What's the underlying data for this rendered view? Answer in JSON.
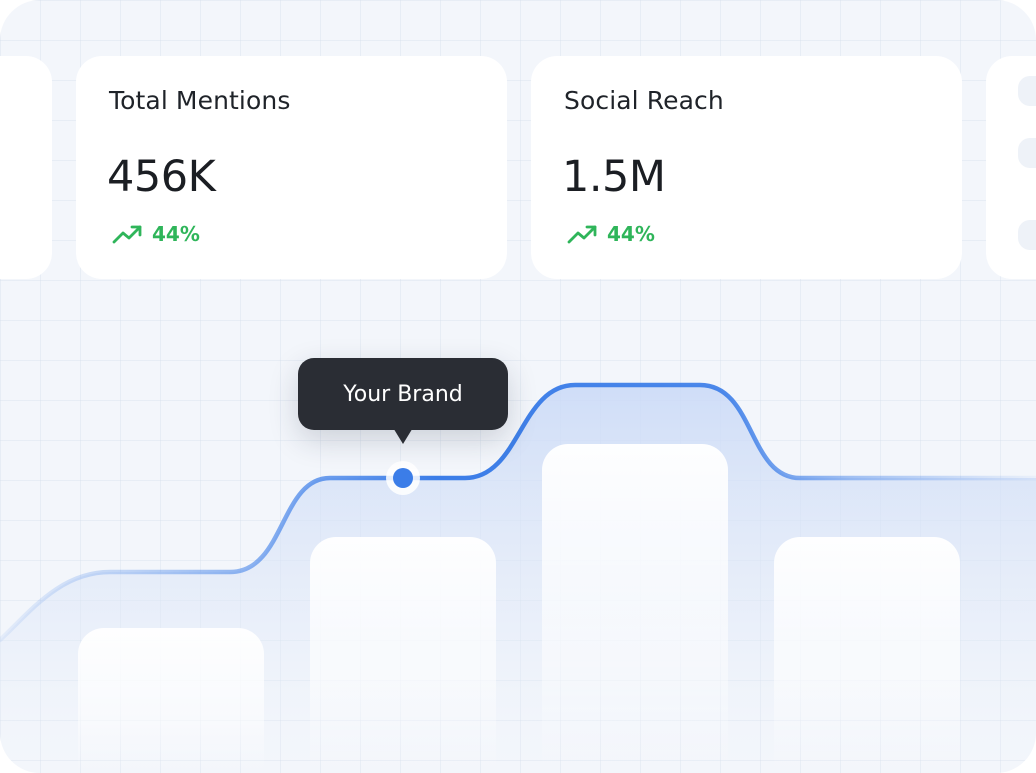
{
  "cards": [
    {
      "title": "Total Mentions",
      "value": "456K",
      "trend": "44%"
    },
    {
      "title": "Social Reach",
      "value": "1.5M",
      "trend": "44%"
    }
  ],
  "tooltip": {
    "label": "Your Brand"
  },
  "colors": {
    "accent": "#3b7de8",
    "positive": "#2fb55a",
    "tooltip_bg": "#2a2d34",
    "background": "#f3f6fb"
  },
  "icons": {
    "trend": "trending-up-icon"
  }
}
